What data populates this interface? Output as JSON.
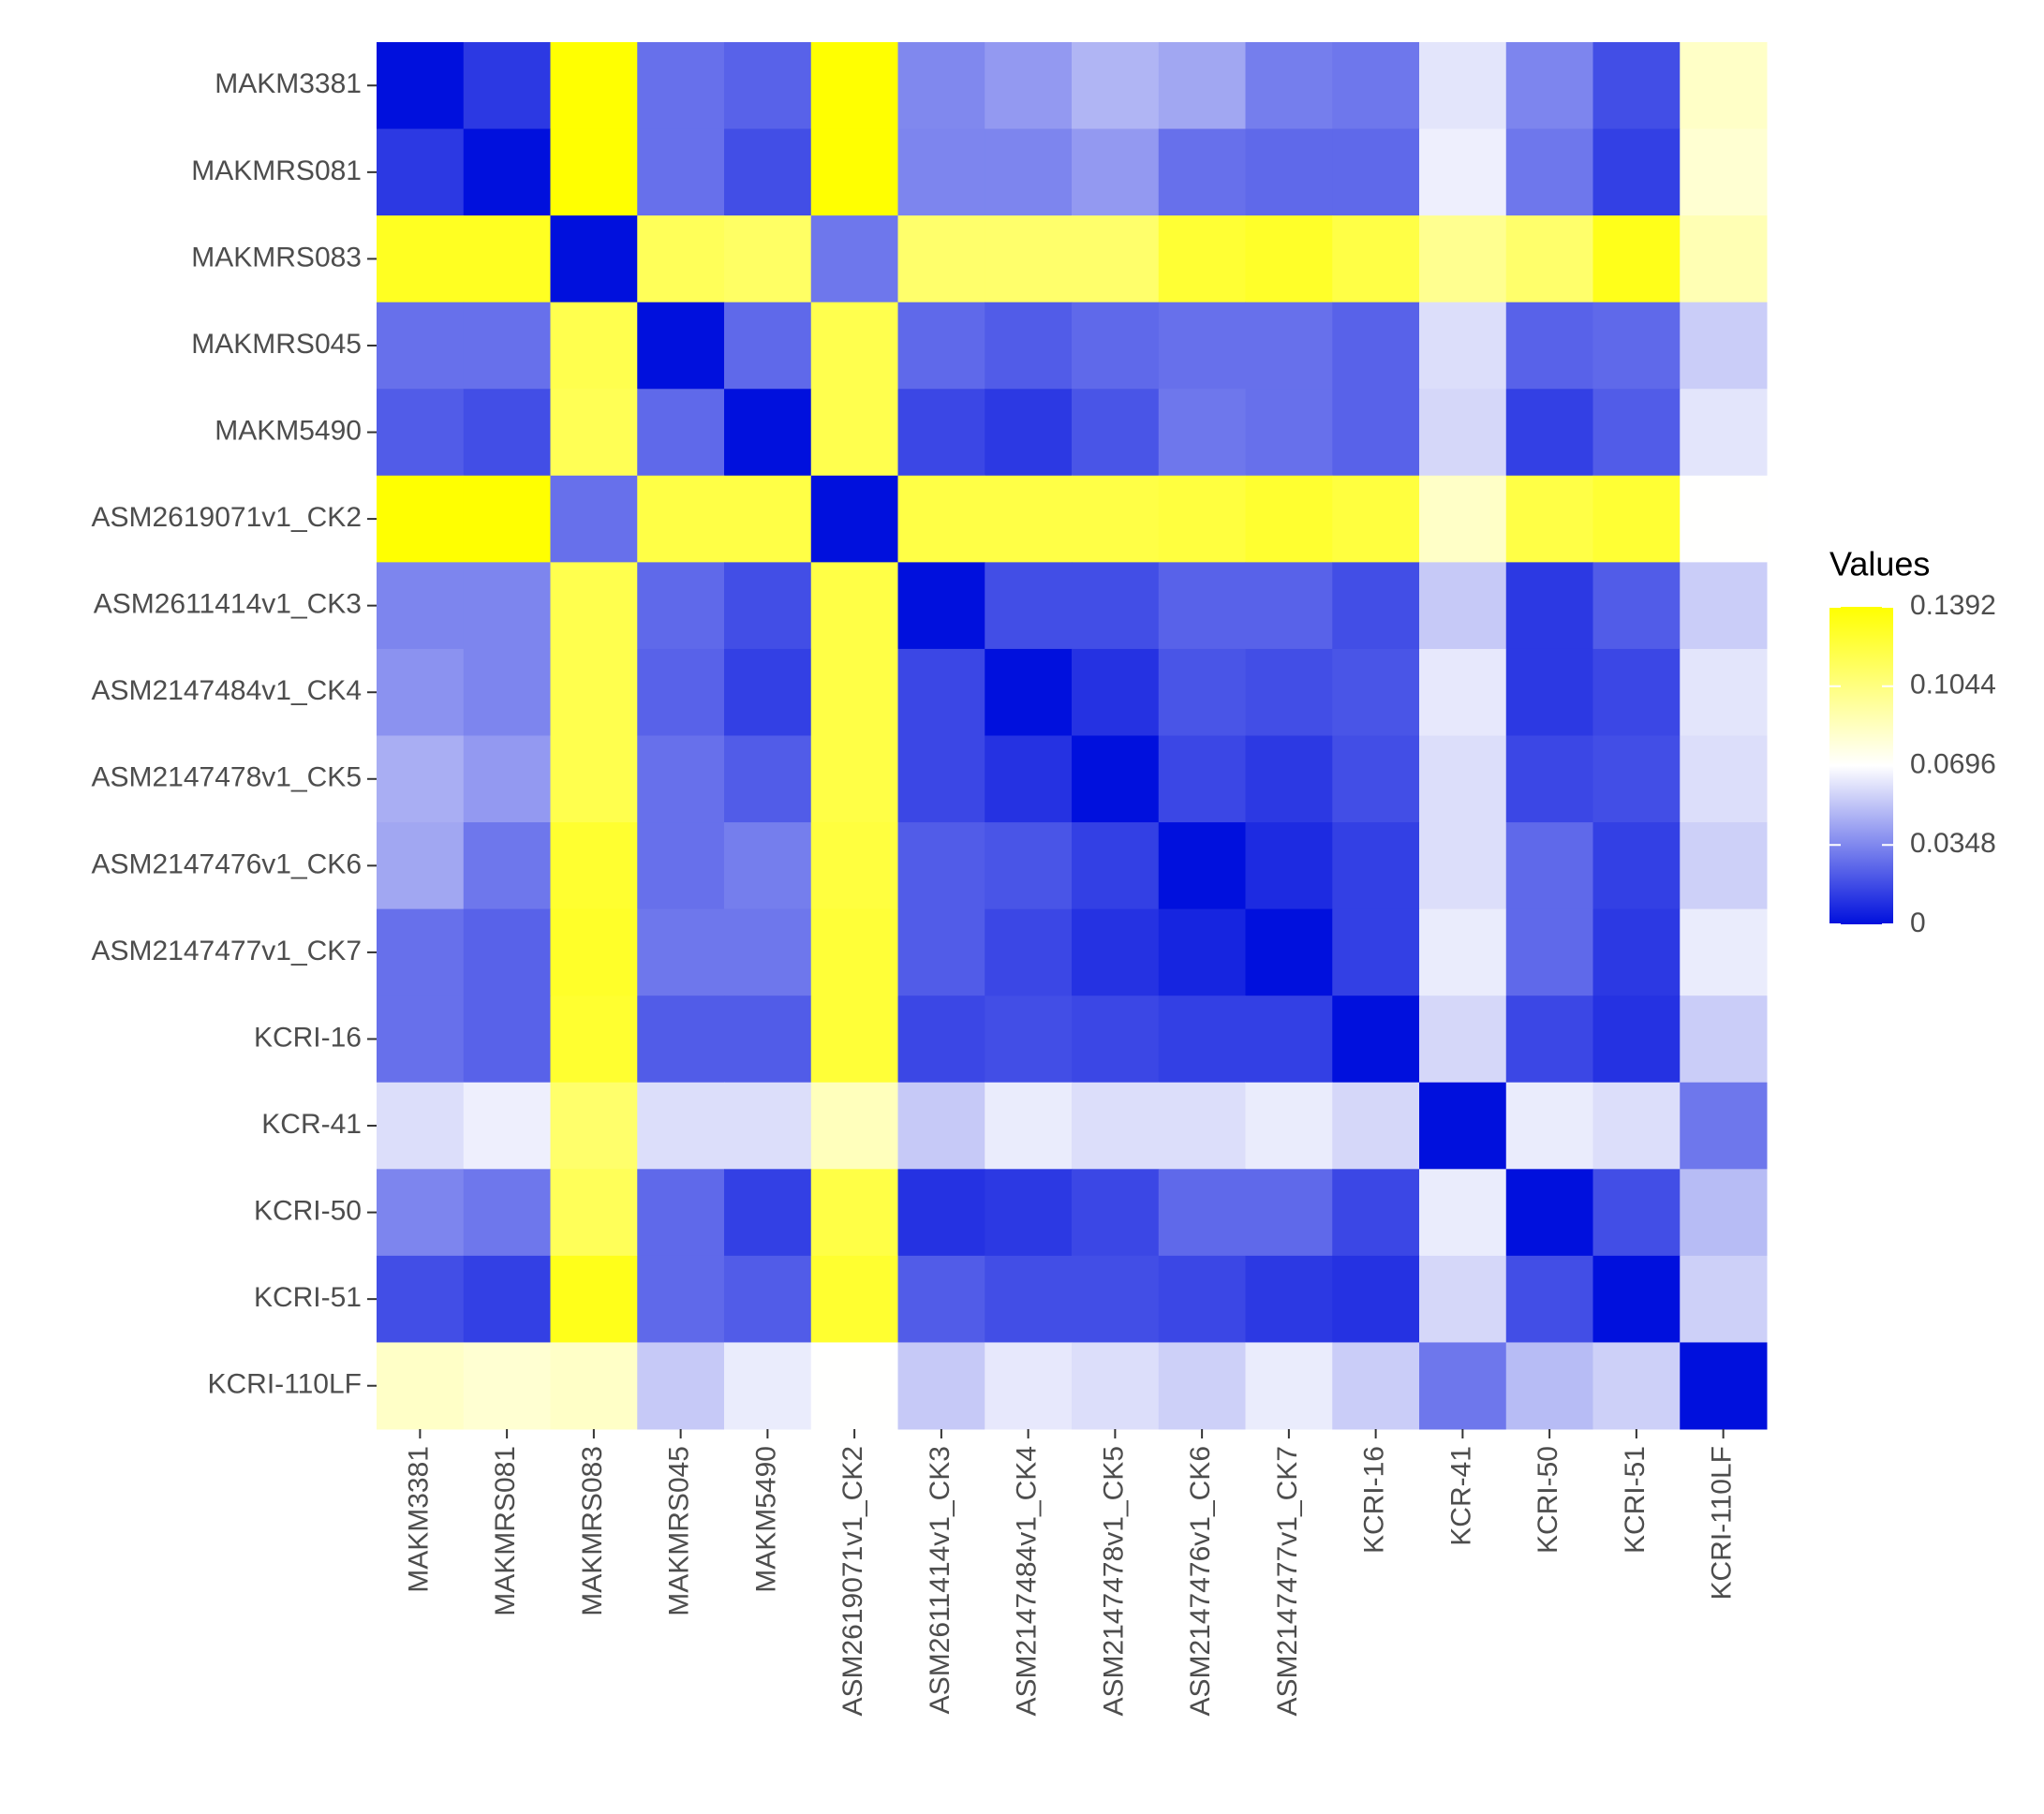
{
  "chart_data": {
    "type": "heatmap",
    "x": [
      "MAKM3381",
      "MAKMRS081",
      "MAKMRS083",
      "MAKMRS045",
      "MAKM5490",
      "ASM2619071v1_CK2",
      "ASM2611414v1_CK3",
      "ASM2147484v1_CK4",
      "ASM2147478v1_CK5",
      "ASM2147476v1_CK6",
      "ASM2147477v1_CK7",
      "KCRI-16",
      "KCR-41",
      "KCRI-50",
      "KCRI-51",
      "KCRI-110LF"
    ],
    "y": [
      "MAKM3381",
      "MAKMRS081",
      "MAKMRS083",
      "MAKMRS045",
      "MAKM5490",
      "ASM2619071v1_CK2",
      "ASM2611414v1_CK3",
      "ASM2147484v1_CK4",
      "ASM2147478v1_CK5",
      "ASM2147476v1_CK6",
      "ASM2147477v1_CK7",
      "KCRI-16",
      "KCR-41",
      "KCRI-50",
      "KCRI-51",
      "KCRI-110LF"
    ],
    "values": [
      [
        0,
        0.012,
        0.139,
        0.028,
        0.024,
        0.139,
        0.035,
        0.04,
        0.048,
        0.044,
        0.032,
        0.03,
        0.062,
        0.034,
        0.018,
        0.085
      ],
      [
        0.012,
        0,
        0.139,
        0.028,
        0.018,
        0.139,
        0.034,
        0.034,
        0.04,
        0.028,
        0.026,
        0.026,
        0.065,
        0.03,
        0.014,
        0.082
      ],
      [
        0.13,
        0.13,
        0,
        0.115,
        0.112,
        0.03,
        0.11,
        0.11,
        0.11,
        0.125,
        0.128,
        0.12,
        0.1,
        0.11,
        0.132,
        0.09
      ],
      [
        0.028,
        0.028,
        0.118,
        0,
        0.026,
        0.118,
        0.026,
        0.022,
        0.026,
        0.028,
        0.028,
        0.024,
        0.06,
        0.024,
        0.026,
        0.055
      ],
      [
        0.022,
        0.018,
        0.116,
        0.026,
        0,
        0.118,
        0.016,
        0.012,
        0.02,
        0.03,
        0.028,
        0.024,
        0.058,
        0.014,
        0.022,
        0.062
      ],
      [
        0.139,
        0.139,
        0.028,
        0.12,
        0.12,
        0,
        0.12,
        0.12,
        0.12,
        0.122,
        0.126,
        0.122,
        0.085,
        0.12,
        0.125,
        0.07
      ],
      [
        0.034,
        0.034,
        0.118,
        0.026,
        0.018,
        0.12,
        0,
        0.018,
        0.018,
        0.024,
        0.024,
        0.018,
        0.054,
        0.012,
        0.022,
        0.055
      ],
      [
        0.038,
        0.034,
        0.118,
        0.024,
        0.014,
        0.12,
        0.016,
        0,
        0.01,
        0.02,
        0.018,
        0.02,
        0.063,
        0.012,
        0.016,
        0.062
      ],
      [
        0.046,
        0.04,
        0.118,
        0.028,
        0.022,
        0.12,
        0.016,
        0.01,
        0,
        0.016,
        0.012,
        0.018,
        0.06,
        0.016,
        0.018,
        0.06
      ],
      [
        0.044,
        0.03,
        0.126,
        0.028,
        0.032,
        0.122,
        0.022,
        0.02,
        0.014,
        0,
        0.008,
        0.014,
        0.06,
        0.026,
        0.014,
        0.056
      ],
      [
        0.028,
        0.024,
        0.128,
        0.03,
        0.03,
        0.124,
        0.022,
        0.016,
        0.01,
        0.006,
        0,
        0.014,
        0.064,
        0.026,
        0.012,
        0.064
      ],
      [
        0.028,
        0.024,
        0.126,
        0.022,
        0.022,
        0.124,
        0.016,
        0.018,
        0.016,
        0.014,
        0.014,
        0,
        0.058,
        0.016,
        0.01,
        0.055
      ],
      [
        0.06,
        0.065,
        0.11,
        0.06,
        0.06,
        0.088,
        0.054,
        0.064,
        0.06,
        0.06,
        0.064,
        0.058,
        0,
        0.064,
        0.06,
        0.03
      ],
      [
        0.034,
        0.03,
        0.115,
        0.026,
        0.014,
        0.12,
        0.01,
        0.012,
        0.016,
        0.026,
        0.026,
        0.016,
        0.064,
        0,
        0.018,
        0.05
      ],
      [
        0.018,
        0.014,
        0.132,
        0.026,
        0.022,
        0.126,
        0.022,
        0.018,
        0.018,
        0.016,
        0.012,
        0.01,
        0.058,
        0.018,
        0,
        0.056
      ],
      [
        0.085,
        0.082,
        0.085,
        0.054,
        0.064,
        0.07,
        0.054,
        0.063,
        0.06,
        0.056,
        0.064,
        0.055,
        0.03,
        0.05,
        0.056,
        0
      ]
    ],
    "colors": [
      "#0010dd",
      "#ffffff",
      "#ffff00"
    ],
    "legend_title": "Values",
    "zlim": [
      0,
      0.1392
    ],
    "zticks": [
      0,
      0.0348,
      0.0696,
      0.1044,
      0.1392
    ]
  }
}
